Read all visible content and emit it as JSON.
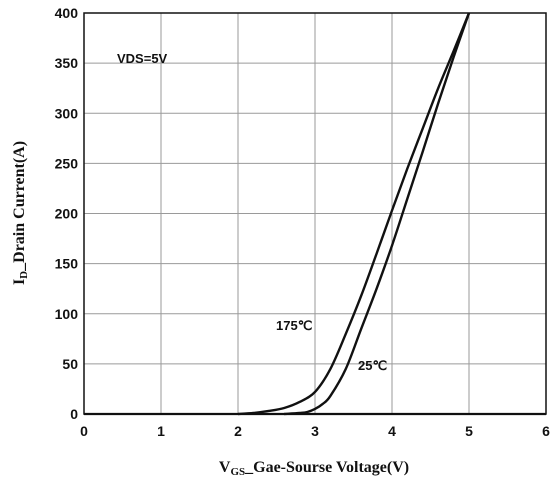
{
  "chart_data": {
    "type": "line",
    "xlim": [
      0,
      6
    ],
    "ylim": [
      0,
      400
    ],
    "x_ticks": [
      0,
      1,
      2,
      3,
      4,
      5,
      6
    ],
    "y_ticks": [
      0,
      50,
      100,
      150,
      200,
      250,
      300,
      350,
      400
    ],
    "grid": true,
    "xlabel": {
      "main": "V",
      "sub": "GS",
      "rest": "_Gae-Sourse Voltage(V)"
    },
    "ylabel": {
      "main": "I",
      "sub": "D",
      "rest": "_Drain Current(A)"
    },
    "condition_label": "VDS=5V",
    "series": [
      {
        "name": "175℃",
        "x": [
          2.0,
          2.2,
          2.4,
          2.6,
          2.8,
          3.0,
          3.2,
          3.4,
          3.6,
          3.8,
          4.0,
          4.2,
          4.4,
          4.6,
          4.8,
          5.0
        ],
        "y": [
          0,
          1,
          3,
          6,
          12,
          22,
          45,
          80,
          118,
          160,
          203,
          245,
          285,
          325,
          362,
          400
        ]
      },
      {
        "name": "25℃",
        "x": [
          2.6,
          2.8,
          2.9,
          3.0,
          3.1,
          3.2,
          3.4,
          3.6,
          3.8,
          4.0,
          4.2,
          4.4,
          4.6,
          4.8,
          5.0
        ],
        "y": [
          0,
          1,
          2,
          5,
          10,
          18,
          45,
          85,
          125,
          168,
          215,
          262,
          310,
          356,
          400
        ]
      }
    ]
  }
}
